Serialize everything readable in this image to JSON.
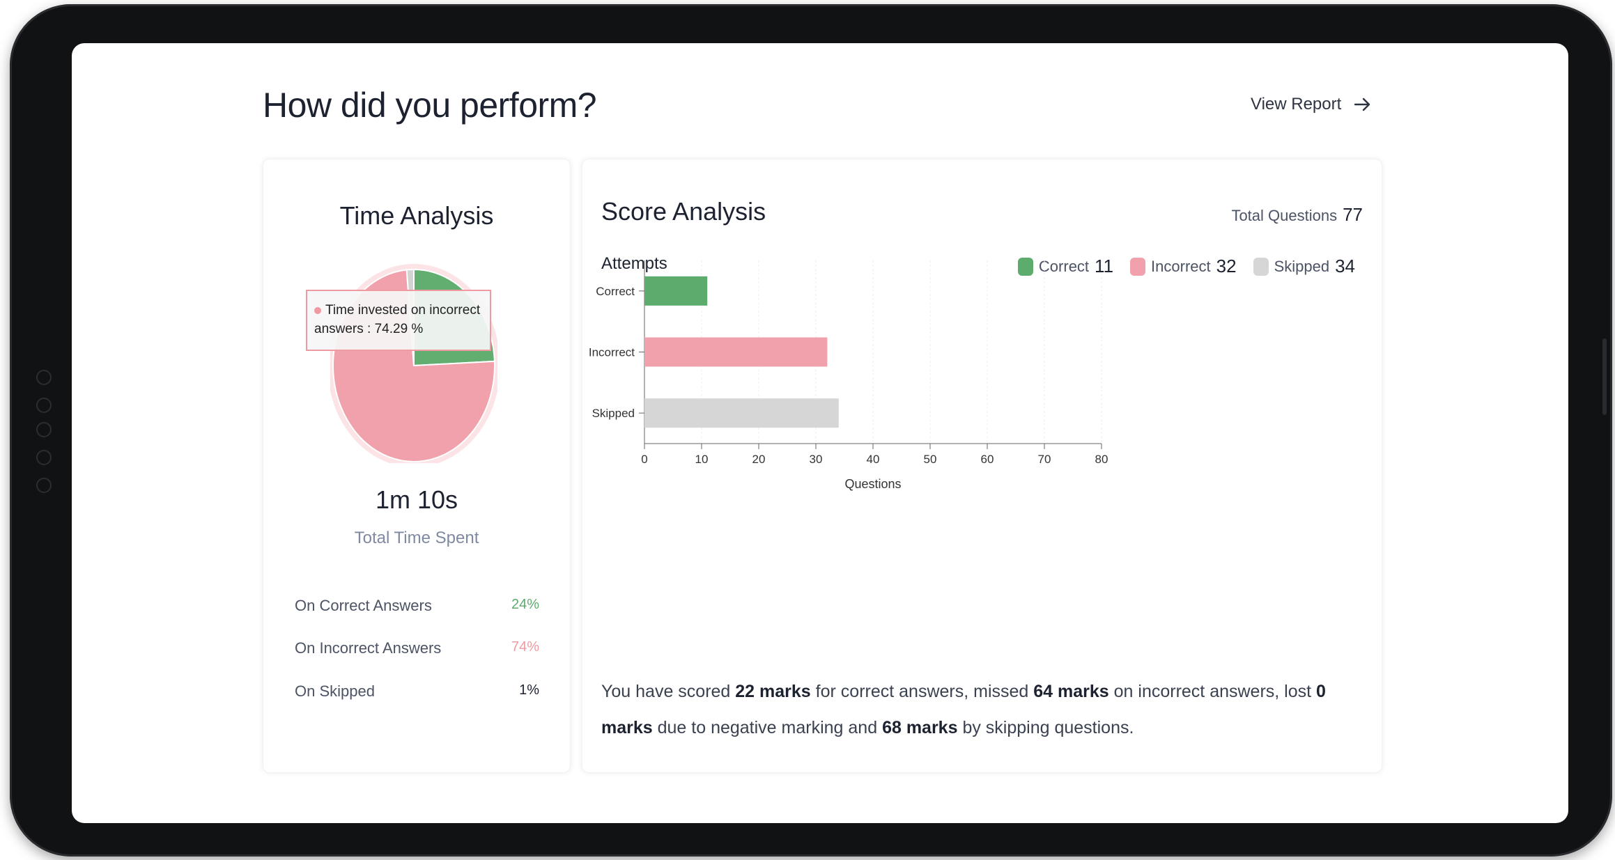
{
  "page": {
    "title": "How did you perform?",
    "view_report_label": "View Report"
  },
  "time_analysis": {
    "title": "Time Analysis",
    "tooltip_text": "Time invested on incorrect answers : 74.29 %",
    "total_time": "1m 10s",
    "total_time_label": "Total Time Spent",
    "rows": [
      {
        "label": "On Correct Answers",
        "value": "24%",
        "color": "#5eab6e"
      },
      {
        "label": "On Incorrect Answers",
        "value": "74%",
        "color": "#ef9aa3"
      },
      {
        "label": "On Skipped",
        "value": "1%",
        "color": "#1d2230"
      }
    ],
    "pie": [
      {
        "name": "Correct",
        "value": 24.29,
        "color": "#62ad70"
      },
      {
        "name": "Incorrect",
        "value": 74.29,
        "color": "#f1a1ab"
      },
      {
        "name": "Skipped",
        "value": 1.42,
        "color": "#d3d3d3"
      }
    ]
  },
  "score_analysis": {
    "title": "Score Analysis",
    "total_questions_label": "Total Questions",
    "total_questions": "77",
    "attempts_label": "Attempts",
    "legend": [
      {
        "label": "Correct",
        "count": "11",
        "color": "#5eab6e"
      },
      {
        "label": "Incorrect",
        "count": "32",
        "color": "#f1a1ab"
      },
      {
        "label": "Skipped",
        "count": "34",
        "color": "#d6d6d6"
      }
    ],
    "summary": {
      "p1": "You have scored ",
      "b1": "22 marks",
      "p2": " for correct answers, missed ",
      "b2": "64 marks",
      "p3": " on incorrect answers, lost ",
      "b3": "0 marks",
      "p4": " due to negative marking and ",
      "b4": "68 marks",
      "p5": " by skipping questions."
    }
  },
  "chart_data": {
    "type": "bar",
    "orientation": "horizontal",
    "categories": [
      "Correct",
      "Incorrect",
      "Skipped"
    ],
    "values": [
      11,
      32,
      34
    ],
    "colors": [
      "#5eab6e",
      "#f1a1ab",
      "#d6d6d6"
    ],
    "xlabel": "Questions",
    "xlim": [
      0,
      80
    ],
    "xticks": [
      0,
      10,
      20,
      30,
      40,
      50,
      60,
      70,
      80
    ],
    "grid": true
  }
}
